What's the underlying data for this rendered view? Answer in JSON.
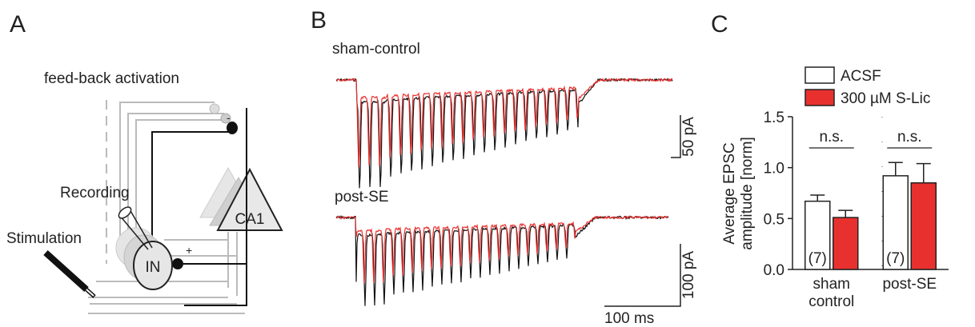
{
  "panel_a": {
    "label": "A",
    "title": "feed-back activation",
    "recording": "Recording",
    "stimulation": "Stimulation",
    "interneuron": "IN",
    "pyramidal": "CA1",
    "plus": "+",
    "minus": "-"
  },
  "panel_b": {
    "label": "B",
    "traces": [
      "sham-control",
      "post-SE"
    ],
    "scale_bars": [
      "50 pA",
      "100 pA",
      "100 ms"
    ]
  },
  "panel_c_label": "C",
  "chart_data": {
    "type": "bar",
    "ylabel": [
      "Average EPSC",
      "amplitude [norm]"
    ],
    "categories": [
      "sham control",
      "post-SE"
    ],
    "series": [
      {
        "name": "ACSF",
        "color": "#ffffff",
        "values": [
          0.67,
          0.92
        ],
        "errors": [
          0.06,
          0.13
        ]
      },
      {
        "name": "300 µM S-Lic",
        "color": "#e8312f",
        "values": [
          0.51,
          0.85
        ],
        "errors": [
          0.07,
          0.19
        ]
      }
    ],
    "ylim": [
      0,
      1.5
    ],
    "yticks": [
      {
        "value": 0,
        "label": "0.0"
      },
      {
        "value": 0.5,
        "label": "0.5"
      },
      {
        "value": 1,
        "label": "1.0"
      },
      {
        "value": 1.5,
        "label": "1.5"
      }
    ],
    "significance": [
      "n.s.",
      "n.s."
    ],
    "n_labels": [
      "(7)",
      "(7)"
    ]
  }
}
